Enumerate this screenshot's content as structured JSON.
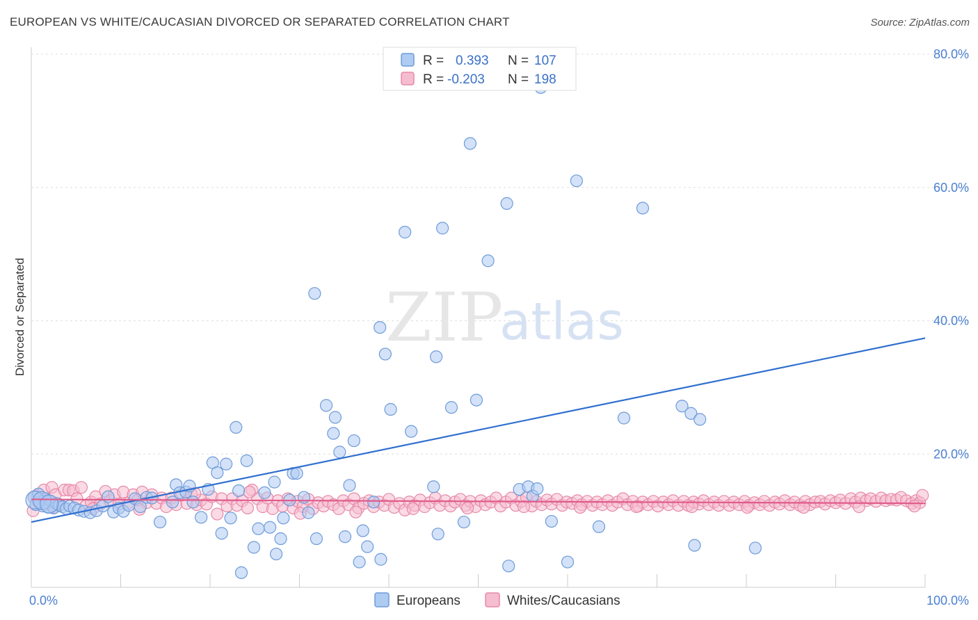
{
  "title": "EUROPEAN VS WHITE/CAUCASIAN DIVORCED OR SEPARATED CORRELATION CHART",
  "source": "Source: ZipAtlas.com",
  "watermark": {
    "left": "ZIP",
    "right": "atlas"
  },
  "chart_data": {
    "type": "scatter",
    "ylabel": "Divorced or Separated",
    "xlim": [
      0,
      100
    ],
    "ylim": [
      0,
      80
    ],
    "x_tick_labels": [
      {
        "value": 0,
        "label": "0.0%"
      },
      {
        "value": 100,
        "label": "100.0%"
      }
    ],
    "y_tick_labels": [
      {
        "value": 20,
        "label": "20.0%"
      },
      {
        "value": 40,
        "label": "40.0%"
      },
      {
        "value": 60,
        "label": "60.0%"
      },
      {
        "value": 80,
        "label": "80.0%"
      }
    ],
    "grid": true,
    "legend_position": "top-center",
    "stats_box": [
      {
        "r_label": "R =",
        "r_value": "0.393",
        "n_label": "N =",
        "n_value": "107",
        "color": "#aecbf2",
        "stroke": "#6e9bd8"
      },
      {
        "r_label": "R =",
        "r_value": "-0.203",
        "n_label": "N =",
        "n_value": "198",
        "color": "#f6bcd0",
        "stroke": "#e68aa8"
      }
    ],
    "series": [
      {
        "name": "Europeans",
        "color": "#aecbf2",
        "stroke": "#6e9bd8",
        "line_color": "#2f6fcf",
        "trend": [
          [
            0,
            9.8
          ],
          [
            100,
            37.4
          ]
        ],
        "points": [
          [
            0.3,
            13.5
          ],
          [
            0.5,
            12.4
          ],
          [
            0.8,
            14
          ],
          [
            1,
            12.8
          ],
          [
            1.3,
            12.2
          ],
          [
            1.6,
            13.3
          ],
          [
            1.9,
            12
          ],
          [
            2.2,
            12.9
          ],
          [
            2.5,
            11.9
          ],
          [
            2.8,
            12.6
          ],
          [
            3.1,
            12.3
          ],
          [
            3.5,
            12.1
          ],
          [
            3.9,
            11.8
          ],
          [
            4.3,
            12.2
          ],
          [
            4.8,
            11.9
          ],
          [
            5.3,
            11.6
          ],
          [
            5.9,
            11.4
          ],
          [
            6.6,
            11.2
          ],
          [
            7.3,
            11.5
          ],
          [
            8,
            12.2
          ],
          [
            8.6,
            13.6
          ],
          [
            9.2,
            11.3
          ],
          [
            9.8,
            11.9
          ],
          [
            10.3,
            11.4
          ],
          [
            10.9,
            12.3
          ],
          [
            11.6,
            13.3
          ],
          [
            12.2,
            12.1
          ],
          [
            12.9,
            13.5
          ],
          [
            13.5,
            13.4
          ],
          [
            14.4,
            9.8
          ],
          [
            15.8,
            12.8
          ],
          [
            16.2,
            15.4
          ],
          [
            16.6,
            14.2
          ],
          [
            17.3,
            14.3
          ],
          [
            17.7,
            15.2
          ],
          [
            18.1,
            12.8
          ],
          [
            19,
            10.5
          ],
          [
            19.8,
            14.7
          ],
          [
            20.3,
            18.7
          ],
          [
            20.8,
            17.2
          ],
          [
            21.3,
            8.1
          ],
          [
            21.8,
            18.5
          ],
          [
            22.3,
            10.4
          ],
          [
            22.9,
            24
          ],
          [
            23.2,
            14.5
          ],
          [
            23.5,
            2.2
          ],
          [
            24.1,
            19
          ],
          [
            24.9,
            6
          ],
          [
            25.4,
            8.8
          ],
          [
            26.1,
            14.2
          ],
          [
            26.7,
            9
          ],
          [
            27.2,
            15.8
          ],
          [
            27.4,
            5
          ],
          [
            27.9,
            7.3
          ],
          [
            28.2,
            10.4
          ],
          [
            28.9,
            13.1
          ],
          [
            29.3,
            17.1
          ],
          [
            29.7,
            17.1
          ],
          [
            30.5,
            13.5
          ],
          [
            31,
            11.2
          ],
          [
            31.7,
            44.1
          ],
          [
            31.9,
            7.3
          ],
          [
            33,
            27.3
          ],
          [
            33.8,
            23.1
          ],
          [
            34.5,
            20.3
          ],
          [
            35.1,
            7.6
          ],
          [
            35.6,
            15.3
          ],
          [
            36.1,
            22
          ],
          [
            36.7,
            3.8
          ],
          [
            37.1,
            8.5
          ],
          [
            37.6,
            6.1
          ],
          [
            38.3,
            12.8
          ],
          [
            39,
            39
          ],
          [
            39.1,
            4.2
          ],
          [
            39.6,
            35
          ],
          [
            40.2,
            26.7
          ],
          [
            41.8,
            53.3
          ],
          [
            42.5,
            23.4
          ],
          [
            45,
            15.1
          ],
          [
            45.3,
            34.6
          ],
          [
            45.5,
            8
          ],
          [
            46,
            53.9
          ],
          [
            47,
            27
          ],
          [
            48.4,
            9.8
          ],
          [
            49.1,
            66.6
          ],
          [
            49.8,
            28.1
          ],
          [
            51.1,
            49
          ],
          [
            53.2,
            57.6
          ],
          [
            53.4,
            3.2
          ],
          [
            54.6,
            14.7
          ],
          [
            55.6,
            15.1
          ],
          [
            56.1,
            13.7
          ],
          [
            56.6,
            14.8
          ],
          [
            58.2,
            9.9
          ],
          [
            60,
            3.8
          ],
          [
            61,
            61
          ],
          [
            63.5,
            9.1
          ],
          [
            66.3,
            25.4
          ],
          [
            68.4,
            56.9
          ],
          [
            72.8,
            27.2
          ],
          [
            73.8,
            26.1
          ],
          [
            74.2,
            6.3
          ],
          [
            74.8,
            25.2
          ],
          [
            81,
            5.9
          ],
          [
            57,
            75
          ],
          [
            34,
            25.5
          ]
        ]
      },
      {
        "name": "Whites/Caucasians",
        "color": "#f6bcd0",
        "stroke": "#e68aa8",
        "line_color": "#e05b8b",
        "trend": [
          [
            0,
            13.2
          ],
          [
            100,
            12.6
          ]
        ],
        "points": [
          [
            0.2,
            11.5
          ],
          [
            0.6,
            13.8
          ],
          [
            1,
            12.6
          ],
          [
            1.4,
            14.6
          ],
          [
            1.8,
            13.1
          ],
          [
            2.3,
            15
          ],
          [
            2.7,
            13.9
          ],
          [
            3.2,
            12.4
          ],
          [
            3.7,
            14.6
          ],
          [
            4.2,
            14.6
          ],
          [
            4.7,
            14.5
          ],
          [
            5.1,
            13.3
          ],
          [
            5.6,
            15
          ],
          [
            6.1,
            12.2
          ],
          [
            6.7,
            12.8
          ],
          [
            7.2,
            13.6
          ],
          [
            7.7,
            12.5
          ],
          [
            8.3,
            14.4
          ],
          [
            8.8,
            13
          ],
          [
            9.3,
            13.9
          ],
          [
            9.8,
            12.5
          ],
          [
            10.3,
            14.3
          ],
          [
            10.8,
            12.6
          ],
          [
            11.4,
            13.9
          ],
          [
            11.9,
            13.1
          ],
          [
            12.4,
            14.3
          ],
          [
            12.9,
            12.7
          ],
          [
            13.5,
            13.9
          ],
          [
            14,
            12.6
          ],
          [
            14.6,
            13.4
          ],
          [
            15.1,
            12.1
          ],
          [
            15.7,
            13.4
          ],
          [
            16.2,
            12.4
          ],
          [
            16.8,
            13.8
          ],
          [
            17.4,
            12.6
          ],
          [
            17.9,
            14
          ],
          [
            18.5,
            12.4
          ],
          [
            19,
            13.1
          ],
          [
            19.6,
            12.5
          ],
          [
            20.2,
            13.6
          ],
          [
            20.8,
            11
          ],
          [
            21.3,
            13.3
          ],
          [
            21.9,
            12.2
          ],
          [
            22.5,
            13.3
          ],
          [
            23,
            12.3
          ],
          [
            23.6,
            13
          ],
          [
            24.2,
            11.9
          ],
          [
            24.7,
            14.6
          ],
          [
            25.3,
            13.3
          ],
          [
            25.9,
            12.1
          ],
          [
            26.4,
            13.4
          ],
          [
            27,
            11.8
          ],
          [
            27.6,
            13
          ],
          [
            28.1,
            12.2
          ],
          [
            28.7,
            13.3
          ],
          [
            29.3,
            11.9
          ],
          [
            29.8,
            12.9
          ],
          [
            30.4,
            12.1
          ],
          [
            31,
            13.2
          ],
          [
            31.5,
            11.8
          ],
          [
            32.1,
            12.7
          ],
          [
            32.7,
            12.2
          ],
          [
            33.2,
            12.9
          ],
          [
            33.8,
            12.4
          ],
          [
            34.4,
            11.8
          ],
          [
            34.9,
            13
          ],
          [
            35.5,
            12.4
          ],
          [
            36.1,
            13.3
          ],
          [
            36.6,
            11.9
          ],
          [
            37.2,
            12.6
          ],
          [
            37.8,
            13
          ],
          [
            38.3,
            12.1
          ],
          [
            38.9,
            12.8
          ],
          [
            39.5,
            12.3
          ],
          [
            40,
            13.2
          ],
          [
            40.6,
            12
          ],
          [
            41.2,
            12.6
          ],
          [
            41.8,
            11.6
          ],
          [
            42.3,
            12.8
          ],
          [
            42.9,
            12.3
          ],
          [
            43.5,
            13.1
          ],
          [
            44,
            12.1
          ],
          [
            44.6,
            12.7
          ],
          [
            45.2,
            13.4
          ],
          [
            45.7,
            12.3
          ],
          [
            46.3,
            13
          ],
          [
            46.9,
            12.2
          ],
          [
            47.4,
            12.8
          ],
          [
            48,
            13.2
          ],
          [
            48.6,
            12.3
          ],
          [
            49.1,
            12.9
          ],
          [
            49.7,
            12.1
          ],
          [
            50.3,
            13
          ],
          [
            50.8,
            12.4
          ],
          [
            51.4,
            12.8
          ],
          [
            52,
            13.4
          ],
          [
            52.5,
            12.2
          ],
          [
            53.1,
            12.8
          ],
          [
            53.7,
            13.4
          ],
          [
            54.2,
            12.3
          ],
          [
            54.8,
            12.9
          ],
          [
            55.4,
            13.5
          ],
          [
            56,
            12.2
          ],
          [
            56.5,
            12.9
          ],
          [
            57.1,
            12.4
          ],
          [
            57.7,
            13.1
          ],
          [
            58.2,
            12.5
          ],
          [
            58.8,
            13.2
          ],
          [
            59.4,
            12.3
          ],
          [
            59.9,
            12.8
          ],
          [
            60.5,
            12.6
          ],
          [
            61.1,
            13
          ],
          [
            61.6,
            12.4
          ],
          [
            62.2,
            12.9
          ],
          [
            62.8,
            12.3
          ],
          [
            63.3,
            12.8
          ],
          [
            63.9,
            12.4
          ],
          [
            64.5,
            13
          ],
          [
            65,
            12.3
          ],
          [
            65.6,
            12.8
          ],
          [
            66.2,
            13.3
          ],
          [
            66.7,
            12.4
          ],
          [
            67.3,
            12.9
          ],
          [
            67.9,
            12.2
          ],
          [
            68.4,
            12.8
          ],
          [
            69,
            12.4
          ],
          [
            69.6,
            12.9
          ],
          [
            70.1,
            12.2
          ],
          [
            70.7,
            12.8
          ],
          [
            71.3,
            12.4
          ],
          [
            71.8,
            13
          ],
          [
            72.4,
            12.3
          ],
          [
            73,
            12.9
          ],
          [
            73.5,
            12.3
          ],
          [
            74.1,
            12.8
          ],
          [
            74.7,
            12.5
          ],
          [
            75.2,
            13
          ],
          [
            75.8,
            12.4
          ],
          [
            76.4,
            12.8
          ],
          [
            76.9,
            12.3
          ],
          [
            77.5,
            12.9
          ],
          [
            78.1,
            12.3
          ],
          [
            78.6,
            12.8
          ],
          [
            79.2,
            12.4
          ],
          [
            79.8,
            12.9
          ],
          [
            80.3,
            12.3
          ],
          [
            80.9,
            12.7
          ],
          [
            81.5,
            12.4
          ],
          [
            82,
            12.9
          ],
          [
            82.6,
            12.3
          ],
          [
            83.2,
            12.8
          ],
          [
            83.7,
            12.5
          ],
          [
            84.3,
            13
          ],
          [
            84.9,
            12.4
          ],
          [
            85.4,
            12.8
          ],
          [
            86,
            12.3
          ],
          [
            86.6,
            12.9
          ],
          [
            87.1,
            12.4
          ],
          [
            87.7,
            12.8
          ],
          [
            88.3,
            12.9
          ],
          [
            88.8,
            12.5
          ],
          [
            89.4,
            13
          ],
          [
            90,
            12.7
          ],
          [
            90.5,
            13.1
          ],
          [
            91.1,
            12.6
          ],
          [
            91.7,
            13.3
          ],
          [
            92.2,
            12.8
          ],
          [
            92.8,
            13.4
          ],
          [
            93.4,
            13
          ],
          [
            93.9,
            13.3
          ],
          [
            94.5,
            12.9
          ],
          [
            95.1,
            13.4
          ],
          [
            95.6,
            13
          ],
          [
            96.2,
            13.2
          ],
          [
            96.8,
            13.1
          ],
          [
            97.3,
            13.5
          ],
          [
            97.9,
            13
          ],
          [
            98.5,
            12.6
          ],
          [
            99,
            13
          ],
          [
            99.4,
            12.7
          ],
          [
            99.7,
            13.8
          ],
          [
            2.6,
            12
          ],
          [
            6.9,
            11.8
          ],
          [
            12.1,
            11.7
          ],
          [
            18.3,
            14.1
          ],
          [
            24.4,
            14.3
          ],
          [
            30.1,
            11.1
          ],
          [
            36.3,
            11.3
          ],
          [
            42.7,
            11.8
          ],
          [
            48.8,
            11.9
          ],
          [
            55.1,
            12.1
          ],
          [
            61.4,
            12
          ],
          [
            67.7,
            12.1
          ],
          [
            73.9,
            12.1
          ],
          [
            80.1,
            12
          ],
          [
            86.4,
            12
          ],
          [
            92.6,
            12.1
          ],
          [
            98.8,
            12.2
          ]
        ]
      }
    ]
  }
}
